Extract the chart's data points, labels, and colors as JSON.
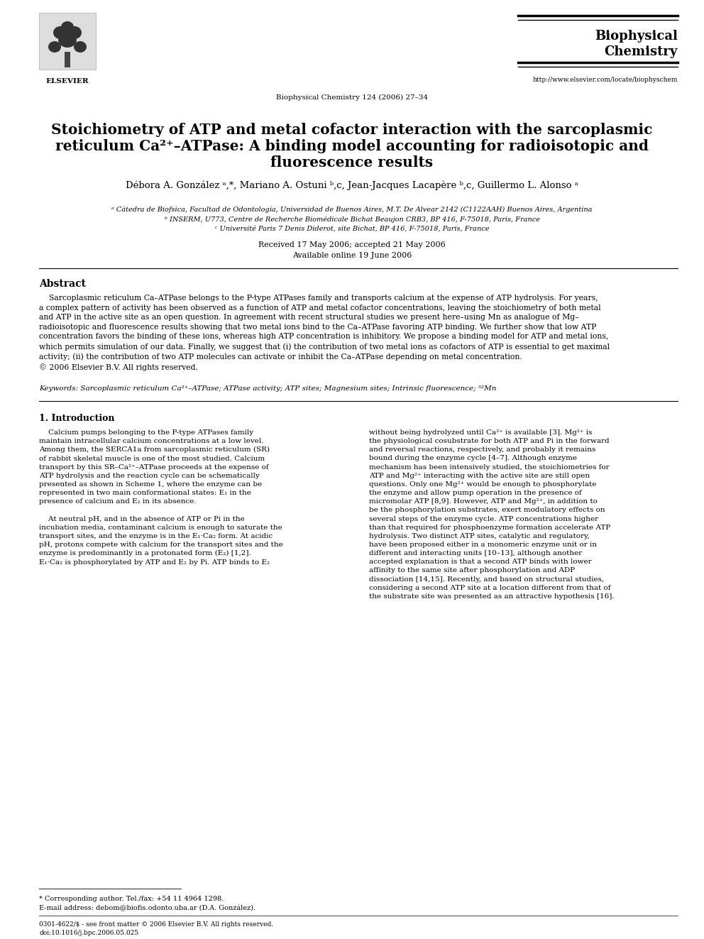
{
  "bg_color": "#ffffff",
  "journal_volume": "Biophysical Chemistry 124 (2006) 27–34",
  "journal_url": "http://www.elsevier.com/locate/biophyschem",
  "footer_line1": "0301-4622/$ - see front matter © 2006 Elsevier B.V. All rights reserved.",
  "footer_line2": "doi:10.1016/j.bpc.2006.05.025"
}
